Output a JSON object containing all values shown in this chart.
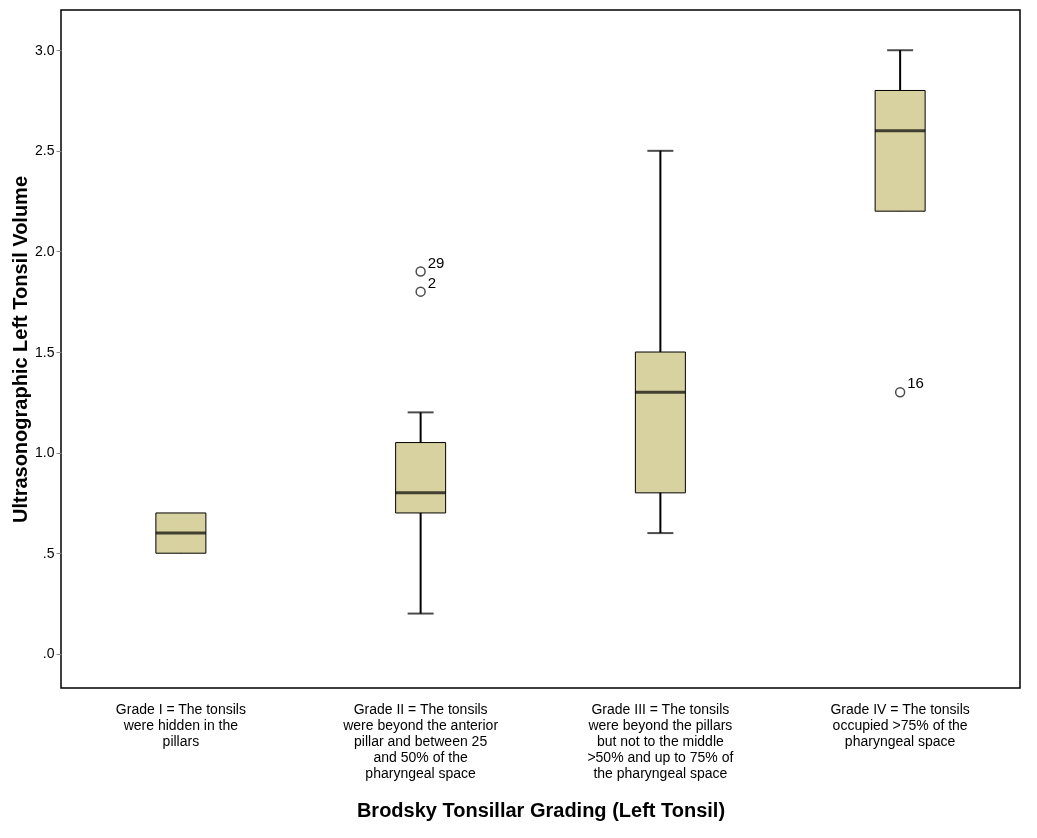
{
  "chart_data": {
    "type": "box",
    "xlabel": "Brodsky Tonsillar Grading (Left Tonsil)",
    "ylabel": "Ultrasonographic Left Tonsil Volume",
    "categories": [
      "Grade I = The tonsils were hidden in the pillars",
      "Grade II = The tonsils were beyond the anterior pillar and between 25 and 50% of the pharyngeal space",
      "Grade III = The tonsils were beyond the pillars but not to the middle >50% and up to 75% of the pharyngeal space",
      "Grade IV = The tonsils occupied >75% of the pharyngeal space"
    ],
    "boxes": [
      {
        "low": 0.5,
        "q1": 0.5,
        "median": 0.6,
        "q3": 0.7,
        "high": 0.7
      },
      {
        "low": 0.2,
        "q1": 0.7,
        "median": 0.8,
        "q3": 1.05,
        "high": 1.2,
        "outliers": [
          1.9,
          1.8
        ]
      },
      {
        "low": 0.6,
        "q1": 0.8,
        "median": 1.3,
        "q3": 1.5,
        "high": 2.5
      },
      {
        "low": 2.2,
        "q1": 2.2,
        "median": 2.6,
        "q3": 2.8,
        "high": 3.0,
        "outliers": [
          1.3
        ]
      }
    ],
    "color": "#d8d2a0",
    "ylim": [
      -0.17,
      3.2
    ],
    "yticks": [
      {
        "value": 0,
        "label": ".0"
      },
      {
        "value": 0.5,
        "label": ".5"
      },
      {
        "value": 1.0,
        "label": "1.0"
      },
      {
        "value": 1.5,
        "label": "1.5"
      },
      {
        "value": 2.0,
        "label": "2.0"
      },
      {
        "value": 2.5,
        "label": "2.5"
      },
      {
        "value": 3.0,
        "label": "3.0"
      }
    ],
    "grid": false,
    "annotations": [
      "29",
      "2",
      "16"
    ]
  }
}
